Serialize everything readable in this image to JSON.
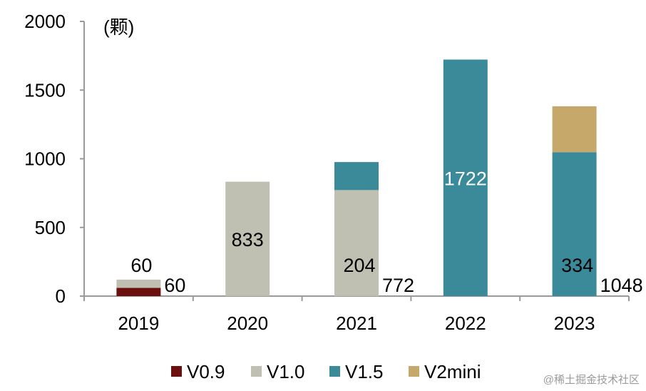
{
  "chart_data": {
    "type": "bar",
    "stacked": true,
    "unit_label": "(颗)",
    "categories": [
      "2019",
      "2020",
      "2021",
      "2022",
      "2023"
    ],
    "ylim": [
      0,
      2000
    ],
    "yticks": [
      0,
      500,
      1000,
      1500,
      2000
    ],
    "series": [
      {
        "name": "V0.9",
        "color": "#6b0f0f",
        "label_color": "#000000",
        "values": [
          60,
          0,
          0,
          0,
          0
        ],
        "labels": [
          "60",
          "",
          "",
          "",
          ""
        ]
      },
      {
        "name": "V1.0",
        "color": "#bfbfb2",
        "label_color": "#000000",
        "values": [
          60,
          833,
          772,
          0,
          0
        ],
        "labels": [
          "60",
          "833",
          "772",
          "",
          ""
        ]
      },
      {
        "name": "V1.5",
        "color": "#3b8a9a",
        "label_color": "#ffffff",
        "values": [
          0,
          0,
          204,
          1722,
          1048
        ],
        "labels": [
          "",
          "",
          "204",
          "1722",
          "1048"
        ]
      },
      {
        "name": "V2mini",
        "color": "#c6a86a",
        "label_color": "#000000",
        "values": [
          0,
          0,
          0,
          0,
          334
        ],
        "labels": [
          "",
          "",
          "",
          "",
          "334"
        ]
      }
    ],
    "legend_position": "bottom"
  },
  "watermark": "@稀土掘金技术社区"
}
